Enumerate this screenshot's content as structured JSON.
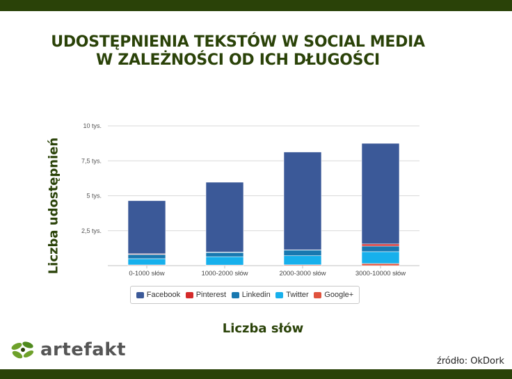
{
  "header": {
    "title_line1": "UDOSTĘPNIENIA TEKSTÓW W SOCIAL MEDIA",
    "title_line2": "W ZALEŻNOŚCI OD ICH DŁUGOŚCI"
  },
  "chart_data": {
    "type": "bar",
    "stacked": true,
    "categories": [
      "0-1000 słów",
      "1000-2000 słów",
      "2000-3000 słów",
      "3000-10000 słów"
    ],
    "series": [
      {
        "name": "Facebook",
        "color": "#3b5998",
        "values": [
          3800,
          5000,
          7000,
          7200
        ]
      },
      {
        "name": "Pinterest",
        "color": "#d42a2a",
        "values": [
          50,
          30,
          20,
          150
        ]
      },
      {
        "name": "Linkedin",
        "color": "#1878b0",
        "values": [
          300,
          300,
          400,
          400
        ]
      },
      {
        "name": "Twitter",
        "color": "#17b0ec",
        "values": [
          450,
          600,
          650,
          850
        ]
      },
      {
        "name": "Google+",
        "color": "#e0533e",
        "values": [
          50,
          40,
          60,
          150
        ]
      }
    ],
    "yticks": [
      {
        "value": 2500,
        "label": "2,5 tys."
      },
      {
        "value": 5000,
        "label": "5 tys."
      },
      {
        "value": 7500,
        "label": "7,5 tys."
      },
      {
        "value": 10000,
        "label": "10 tys."
      }
    ],
    "ylim": [
      0,
      10000
    ],
    "ylabel": "Liczba udostępnień",
    "xlabel": "Liczba słów",
    "legend_position": "bottom",
    "grid": true
  },
  "branding": {
    "logo_text": "artefakt",
    "logo_leaf_colors": [
      "#6ea12a",
      "#2a4208"
    ]
  },
  "source": "źródło: OkDork"
}
